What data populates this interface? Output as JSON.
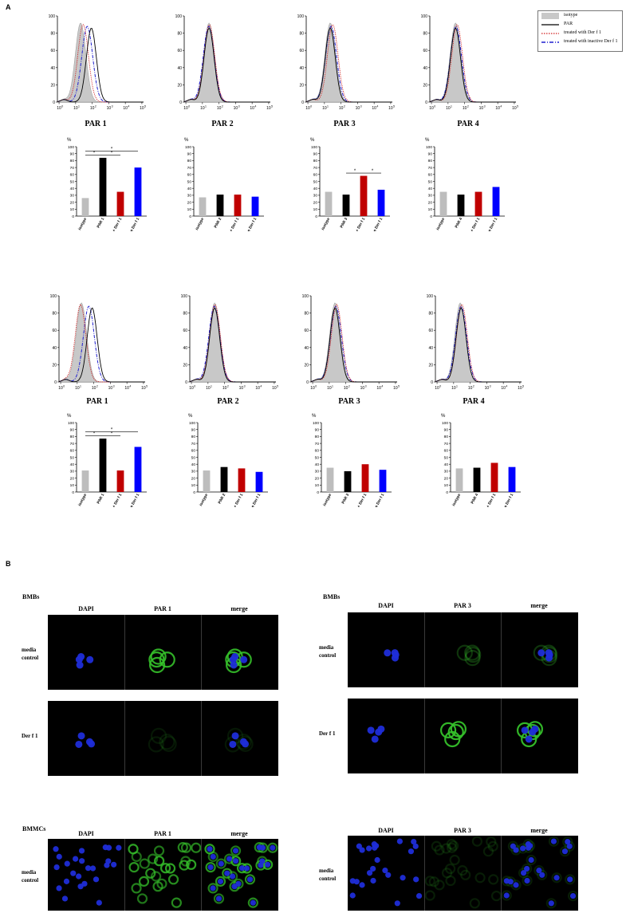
{
  "panel_a_label": "A",
  "panel_b_label": "B",
  "legend": {
    "items": [
      {
        "label": "isotype",
        "color": "#c8c8c8",
        "style": "fill"
      },
      {
        "label": "PAR",
        "color": "#000000",
        "style": "solid"
      },
      {
        "label": "treated with Der f 1",
        "color": "#d02020",
        "style": "dotted"
      },
      {
        "label": "treated with inactive Der f 1",
        "color": "#1f1fcf",
        "style": "dashdot"
      }
    ]
  },
  "histograms": {
    "y_ticks": [
      "0",
      "20",
      "40",
      "60",
      "80",
      "100"
    ],
    "top": [
      {
        "title": "PAR 1",
        "peaks": {
          "isotype": 1.6,
          "par": 2.25,
          "derf1": 1.75,
          "inactive": 2.0
        }
      },
      {
        "title": "PAR 2",
        "peaks": {
          "isotype": 1.7,
          "par": 1.7,
          "derf1": 1.72,
          "inactive": 1.68
        }
      },
      {
        "title": "PAR 3",
        "peaks": {
          "isotype": 1.65,
          "par": 1.65,
          "derf1": 1.8,
          "inactive": 1.7
        }
      },
      {
        "title": "PAR 4",
        "peaks": {
          "isotype": 1.75,
          "par": 1.75,
          "derf1": 1.85,
          "inactive": 1.78
        }
      }
    ],
    "bottom": [
      {
        "title": "PAR 1",
        "peaks": {
          "isotype": 1.55,
          "par": 2.2,
          "derf1": 1.5,
          "inactive": 2.0
        }
      },
      {
        "title": "PAR 2",
        "peaks": {
          "isotype": 1.7,
          "par": 1.7,
          "derf1": 1.72,
          "inactive": 1.68
        }
      },
      {
        "title": "PAR 3",
        "peaks": {
          "isotype": 1.65,
          "par": 1.65,
          "derf1": 1.75,
          "inactive": 1.7
        }
      },
      {
        "title": "PAR 4",
        "peaks": {
          "isotype": 1.7,
          "par": 1.75,
          "derf1": 1.8,
          "inactive": 1.75
        }
      }
    ]
  },
  "chart_data": [
    {
      "type": "bar",
      "ylabel": "%",
      "ylim": [
        0,
        100
      ],
      "categories": [
        "isotype",
        "PAR 1",
        "PAR 1 + Der f 1",
        "PAR 1 + inactive Der f 1"
      ],
      "values": [
        26,
        84,
        35,
        70
      ],
      "colors": [
        "#bdbdbd",
        "#000000",
        "#c00000",
        "#0000ff"
      ],
      "significance": [
        {
          "from": 0,
          "to": 1,
          "label": "*"
        },
        {
          "from": 1,
          "to": 2,
          "label": "*"
        },
        {
          "from": 0,
          "to": 3,
          "label": "*"
        }
      ]
    },
    {
      "type": "bar",
      "ylabel": "%",
      "ylim": [
        0,
        100
      ],
      "categories": [
        "isotype",
        "PAR 2",
        "PAR 2 + Der f 1",
        "PAR 2 + inactive Der f 1"
      ],
      "values": [
        27,
        31,
        31,
        28
      ],
      "colors": [
        "#bdbdbd",
        "#000000",
        "#c00000",
        "#0000ff"
      ],
      "significance": []
    },
    {
      "type": "bar",
      "ylabel": "%",
      "ylim": [
        0,
        100
      ],
      "categories": [
        "isotype",
        "PAR 3",
        "PAR 3 + Der f 1",
        "PAR 3 + inactive Der f 1"
      ],
      "values": [
        35,
        31,
        58,
        38
      ],
      "colors": [
        "#bdbdbd",
        "#000000",
        "#c00000",
        "#0000ff"
      ],
      "significance": [
        {
          "from": 1,
          "to": 2,
          "label": "*"
        },
        {
          "from": 2,
          "to": 3,
          "label": "*"
        }
      ]
    },
    {
      "type": "bar",
      "ylabel": "%",
      "ylim": [
        0,
        100
      ],
      "categories": [
        "isotype",
        "PAR 4",
        "PAR 4 + Der f 1",
        "PAR 4 + inactive Der f 1"
      ],
      "values": [
        35,
        31,
        35,
        42
      ],
      "colors": [
        "#bdbdbd",
        "#000000",
        "#c00000",
        "#0000ff"
      ],
      "significance": []
    },
    {
      "type": "bar",
      "ylabel": "%",
      "ylim": [
        0,
        100
      ],
      "categories": [
        "isotype",
        "PAR 1",
        "PAR 1 + Der f 1",
        "PAR 1 + inactive Der f 1"
      ],
      "values": [
        31,
        77,
        31,
        65
      ],
      "colors": [
        "#bdbdbd",
        "#000000",
        "#c00000",
        "#0000ff"
      ],
      "significance": [
        {
          "from": 0,
          "to": 1,
          "label": "*"
        },
        {
          "from": 1,
          "to": 2,
          "label": "*"
        },
        {
          "from": 0,
          "to": 3,
          "label": "*"
        }
      ]
    },
    {
      "type": "bar",
      "ylabel": "%",
      "ylim": [
        0,
        100
      ],
      "categories": [
        "isotype",
        "PAR 2",
        "PAR 2 + Der f 1",
        "PAR 2 + inactive Der f 1"
      ],
      "values": [
        31,
        36,
        34,
        29
      ],
      "colors": [
        "#bdbdbd",
        "#000000",
        "#c00000",
        "#0000ff"
      ],
      "significance": []
    },
    {
      "type": "bar",
      "ylabel": "%",
      "ylim": [
        0,
        100
      ],
      "categories": [
        "isotype",
        "PAR 3",
        "PAR 3 + Der f 1",
        "PAR 3 + inactive Der f 1"
      ],
      "values": [
        35,
        30,
        40,
        32
      ],
      "colors": [
        "#bdbdbd",
        "#000000",
        "#c00000",
        "#0000ff"
      ],
      "significance": []
    },
    {
      "type": "bar",
      "ylabel": "%",
      "ylim": [
        0,
        100
      ],
      "categories": [
        "isotype",
        "PAR 4",
        "PAR 4 + Der f 1",
        "PAR 4 + inactive Der f 1"
      ],
      "values": [
        34,
        35,
        42,
        36
      ],
      "colors": [
        "#bdbdbd",
        "#000000",
        "#c00000",
        "#0000ff"
      ],
      "significance": []
    }
  ],
  "micro": {
    "groups": [
      {
        "title": "BMBs",
        "headers": [
          "DAPI",
          "PAR 1",
          "merge"
        ],
        "rows": [
          {
            "label": "media control",
            "stain": "membrane"
          },
          {
            "label": "Der f 1",
            "stain": "faint"
          }
        ]
      },
      {
        "title": "BMBs",
        "headers": [
          "DAPI",
          "PAR 3",
          "merge"
        ],
        "rows": [
          {
            "label": "media control",
            "stain": "faint-cluster"
          },
          {
            "label": "Der f 1",
            "stain": "bright-cluster"
          }
        ]
      },
      {
        "title": "BMMCs",
        "headers": [
          "DAPI",
          "PAR 1",
          "merge"
        ],
        "rows": [
          {
            "label": "media control",
            "stain": "many-rings"
          }
        ]
      },
      {
        "title": "",
        "headers": [
          "DAPI",
          "PAR 3",
          "merge"
        ],
        "rows": [
          {
            "label": "media control",
            "stain": "many-faint"
          }
        ]
      }
    ]
  }
}
